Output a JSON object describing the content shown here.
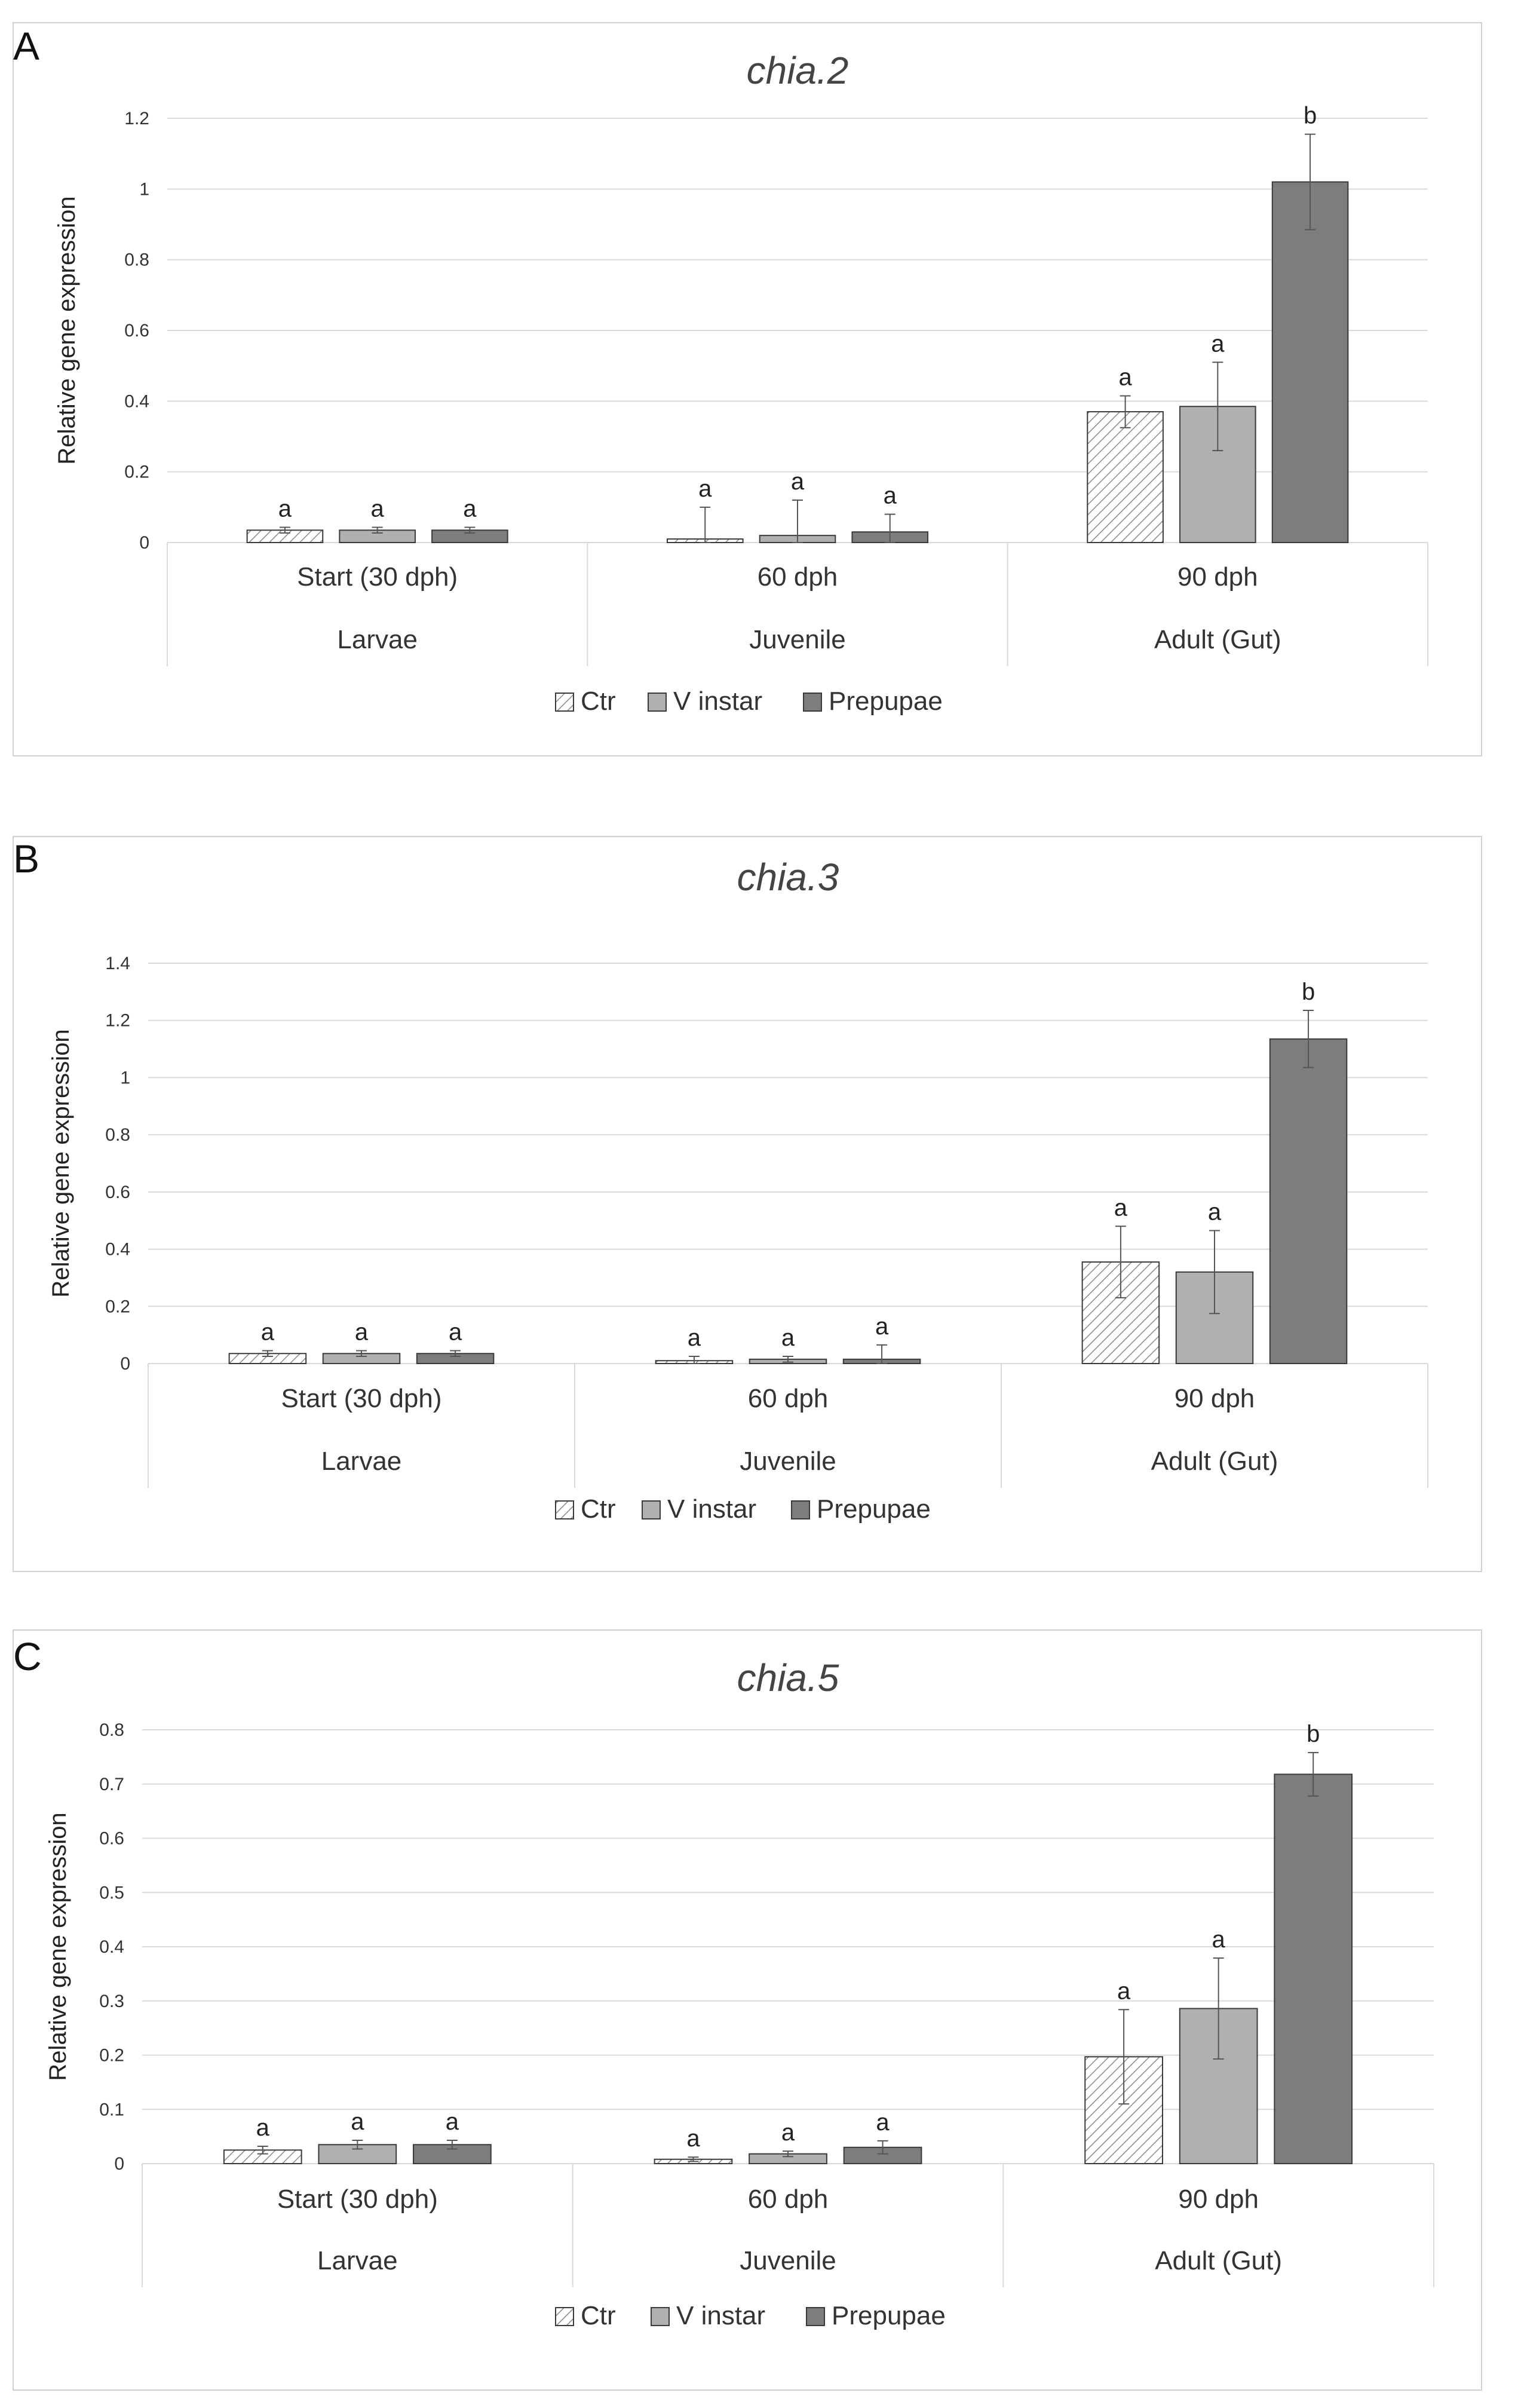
{
  "colors": {
    "ctr_fill": "#ffffff",
    "ctr_hatch": "#8a8a8a",
    "vinstar_fill": "#b0b0b0",
    "prepupae_fill": "#7d7d7d",
    "bar_stroke": "#3a3a3a",
    "grid": "#d9d9d9",
    "axis_text": "#333333",
    "frame": "#d0d0d0"
  },
  "chart_data": [
    {
      "panel_letter": "A",
      "type": "bar",
      "title": "chia.2",
      "ylabel": "Relative gene expression",
      "ylim": [
        0,
        1.2
      ],
      "yticks": [
        "0",
        "0.2",
        "0.4",
        "0.6",
        "0.8",
        "1",
        "1.2"
      ],
      "categories": [
        "Start (30 dph)",
        "60 dph",
        "90 dph"
      ],
      "groups": [
        "Larvae",
        "Juvenile",
        "Adult (Gut)"
      ],
      "series": [
        {
          "name": "Ctr",
          "values": [
            0.035,
            0.01,
            0.37
          ],
          "errors": [
            0.008,
            0.09,
            0.045
          ],
          "letters": [
            "a",
            "a",
            "a"
          ]
        },
        {
          "name": "V instar",
          "values": [
            0.035,
            0.02,
            0.385
          ],
          "errors": [
            0.008,
            0.1,
            0.125
          ],
          "letters": [
            "a",
            "a",
            "a"
          ]
        },
        {
          "name": "Prepupae",
          "values": [
            0.035,
            0.03,
            1.02
          ],
          "errors": [
            0.008,
            0.05,
            0.135
          ],
          "letters": [
            "a",
            "a",
            "b"
          ]
        }
      ],
      "legend": [
        "Ctr",
        "V instar",
        "Prepupae"
      ]
    },
    {
      "panel_letter": "B",
      "type": "bar",
      "title": "chia.3",
      "ylabel": "Relative gene expression",
      "ylim": [
        0,
        1.4
      ],
      "yticks": [
        "0",
        "0.2",
        "0.4",
        "0.6",
        "0.8",
        "1",
        "1.2",
        "1.4"
      ],
      "categories": [
        "Start (30 dph)",
        "60 dph",
        "90 dph"
      ],
      "groups": [
        "Larvae",
        "Juvenile",
        "Adult (Gut)"
      ],
      "series": [
        {
          "name": "Ctr",
          "values": [
            0.035,
            0.01,
            0.355
          ],
          "errors": [
            0.01,
            0.015,
            0.125
          ],
          "letters": [
            "a",
            "a",
            "a"
          ]
        },
        {
          "name": "V instar",
          "values": [
            0.035,
            0.015,
            0.32
          ],
          "errors": [
            0.01,
            0.01,
            0.145
          ],
          "letters": [
            "a",
            "a",
            "a"
          ]
        },
        {
          "name": "Prepupae",
          "values": [
            0.035,
            0.015,
            1.135
          ],
          "errors": [
            0.01,
            0.05,
            0.1
          ],
          "letters": [
            "a",
            "a",
            "b"
          ]
        }
      ],
      "legend": [
        "Ctr",
        "V instar",
        "Prepupae"
      ]
    },
    {
      "panel_letter": "C",
      "type": "bar",
      "title": "chia.5",
      "ylabel": "Relative gene expression",
      "ylim": [
        0,
        0.8
      ],
      "yticks": [
        "0",
        "0.1",
        "0.2",
        "0.3",
        "0.4",
        "0.5",
        "0.6",
        "0.7",
        "0.8"
      ],
      "categories": [
        "Start (30 dph)",
        "60 dph",
        "90 dph"
      ],
      "groups": [
        "Larvae",
        "Juvenile",
        "Adult (Gut)"
      ],
      "series": [
        {
          "name": "Ctr",
          "values": [
            0.025,
            0.008,
            0.197
          ],
          "errors": [
            0.007,
            0.004,
            0.087
          ],
          "letters": [
            "a",
            "a",
            "a"
          ]
        },
        {
          "name": "V instar",
          "values": [
            0.035,
            0.018,
            0.286
          ],
          "errors": [
            0.008,
            0.005,
            0.093
          ],
          "letters": [
            "a",
            "a",
            "a"
          ]
        },
        {
          "name": "Prepupae",
          "values": [
            0.035,
            0.03,
            0.718
          ],
          "errors": [
            0.008,
            0.012,
            0.04
          ],
          "letters": [
            "a",
            "a",
            "b"
          ]
        }
      ],
      "legend": [
        "Ctr",
        "V instar",
        "Prepupae"
      ]
    }
  ]
}
